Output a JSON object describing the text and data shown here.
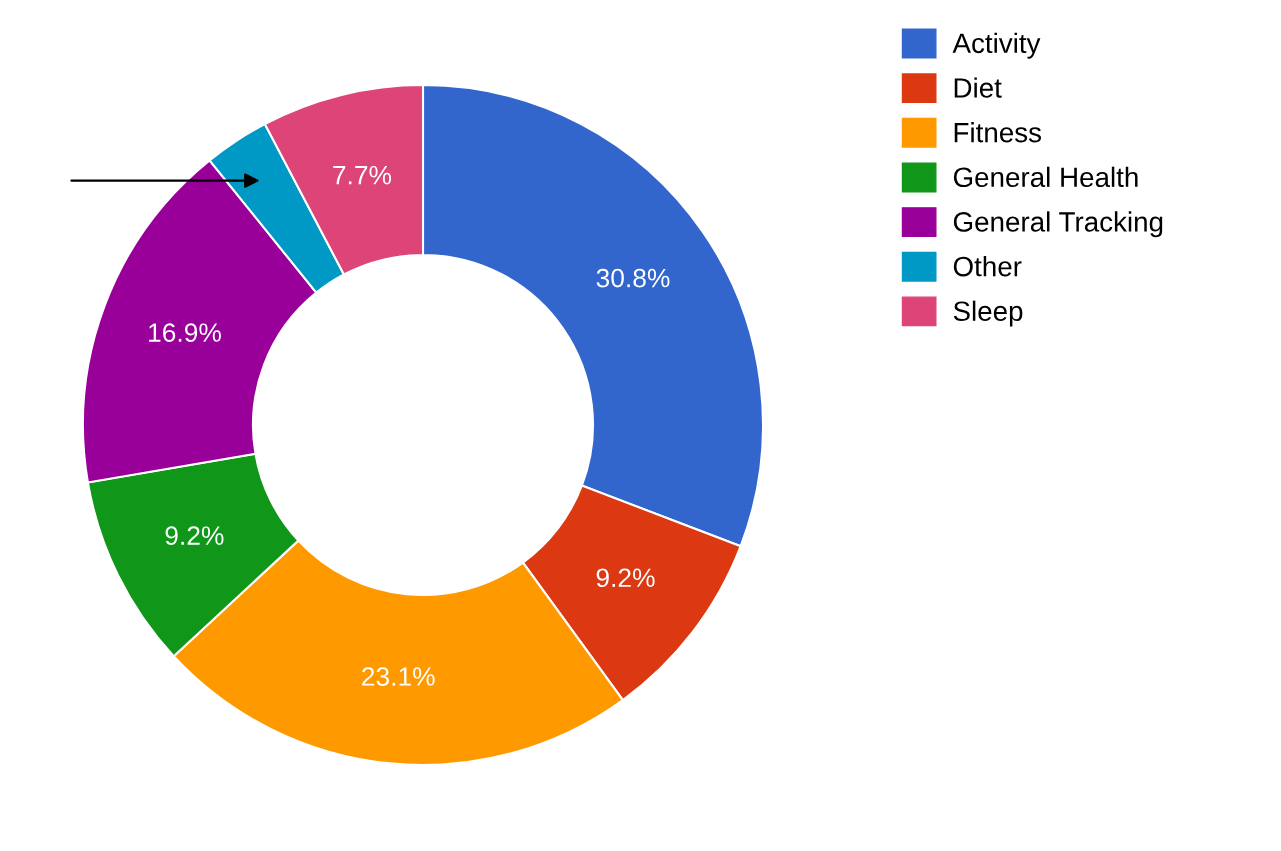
{
  "chart_data": {
    "type": "donut",
    "categories": [
      "Activity",
      "Diet",
      "Fitness",
      "General Health",
      "General Tracking",
      "Other",
      "Sleep"
    ],
    "values": [
      30.8,
      9.2,
      23.1,
      9.2,
      16.9,
      3.1,
      7.7
    ],
    "colors": [
      "#3366cc",
      "#dc3912",
      "#ff9900",
      "#109618",
      "#990099",
      "#0099c6",
      "#dd4477"
    ],
    "value_labels": [
      "30.8%",
      "9.2%",
      "23.1%",
      "9.2%",
      "16.9%",
      null,
      "7.7%"
    ],
    "legend": "top right"
  }
}
